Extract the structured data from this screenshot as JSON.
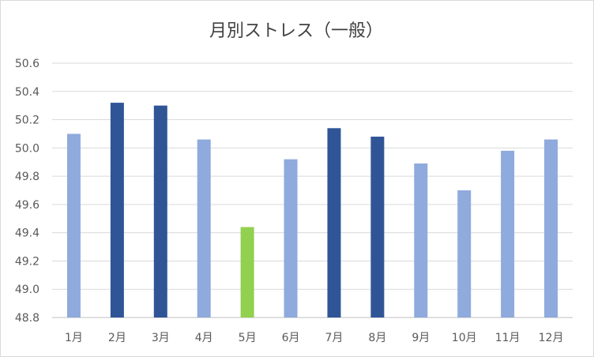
{
  "chart_data": {
    "type": "bar",
    "title": "月別ストレス（一般）",
    "xlabel": "",
    "ylabel": "",
    "categories": [
      "1月",
      "2月",
      "3月",
      "4月",
      "5月",
      "6月",
      "7月",
      "8月",
      "9月",
      "10月",
      "11月",
      "12月"
    ],
    "values": [
      50.1,
      50.32,
      50.3,
      50.06,
      49.44,
      49.92,
      50.14,
      50.08,
      49.89,
      49.7,
      49.98,
      50.06
    ],
    "ylim": [
      48.8,
      50.6
    ],
    "yticks": [
      "48.8",
      "49.0",
      "49.2",
      "49.4",
      "49.6",
      "49.8",
      "50.0",
      "50.2",
      "50.4",
      "50.6"
    ],
    "grid": true,
    "legend": "none",
    "bar_colors": [
      "#8faadc",
      "#2f5597",
      "#2f5597",
      "#8faadc",
      "#92d050",
      "#8faadc",
      "#2f5597",
      "#2f5597",
      "#8faadc",
      "#8faadc",
      "#8faadc",
      "#8faadc"
    ]
  }
}
